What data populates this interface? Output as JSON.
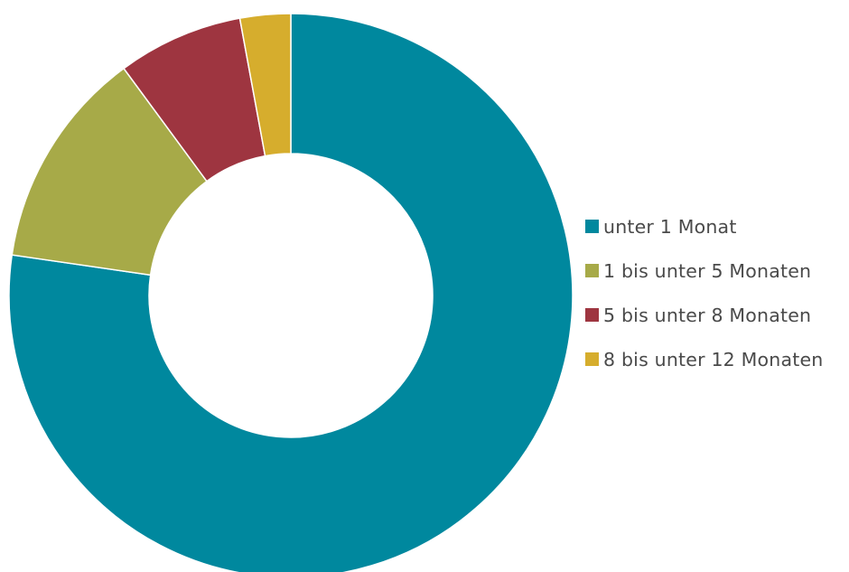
{
  "chart_data": {
    "type": "pie",
    "donut": true,
    "categories": [
      "unter 1 Monat",
      "1 bis unter 5 Monaten",
      "5 bis unter 8 Monaten",
      "8 bis unter 12 Monaten"
    ],
    "values": [
      77.3,
      12.6,
      7.2,
      2.9
    ],
    "colors": [
      "#00889E",
      "#A7AA48",
      "#9E3540",
      "#D6AD2D"
    ],
    "legend_position": "right"
  }
}
